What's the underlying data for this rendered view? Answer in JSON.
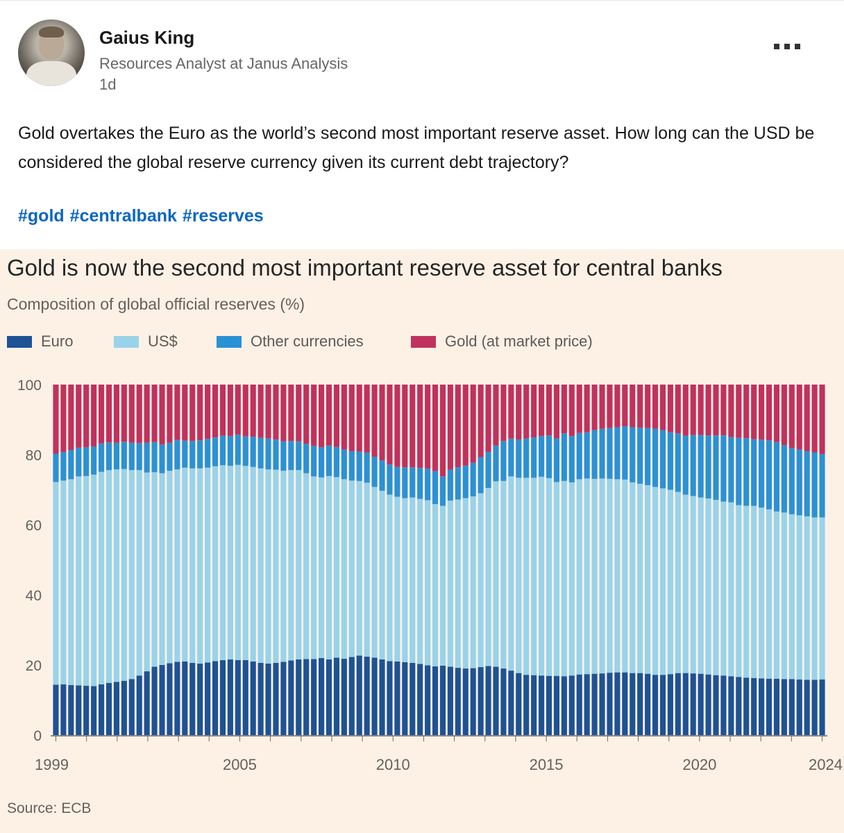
{
  "post": {
    "author_name": "Gaius King",
    "author_title": "Resources Analyst at Janus Analysis",
    "age": "1d",
    "text": "Gold overtakes the Euro as  the world’s second most important reserve asset.  How long can the USD be considered the global reserve currency given its current debt trajectory?",
    "hashtags": [
      "#gold",
      "#centralbank",
      "#reserves"
    ]
  },
  "chart_data": {
    "type": "bar",
    "stacked": true,
    "title": "Gold is now the second most important reserve asset for central banks",
    "subtitle": "Composition of global official reserves (%)",
    "source": "Source: ECB",
    "ylim": [
      0,
      100
    ],
    "yticks": [
      0,
      20,
      40,
      60,
      80,
      100
    ],
    "xtick_labels": [
      "1999",
      "2005",
      "2010",
      "2015",
      "2020",
      "2024"
    ],
    "x_range": [
      1999,
      2024
    ],
    "grid": false,
    "legend_position": "top",
    "series": [
      {
        "name": "Euro",
        "color": "#1e5294",
        "values": [
          14.4,
          14.5,
          14.3,
          14.2,
          14.1,
          14.0,
          14.5,
          14.9,
          15.2,
          15.5,
          16.0,
          17.0,
          18.2,
          19.5,
          20.0,
          20.5,
          20.9,
          21.0,
          20.6,
          20.4,
          20.7,
          21.1,
          21.4,
          21.6,
          21.4,
          21.4,
          21.0,
          20.6,
          20.4,
          20.6,
          20.9,
          21.3,
          21.6,
          21.7,
          21.7,
          22.0,
          21.6,
          22.1,
          21.8,
          22.3,
          22.7,
          22.4,
          22.1,
          21.6,
          21.1,
          21.0,
          20.8,
          20.6,
          20.3,
          19.9,
          19.6,
          19.8,
          19.5,
          19.2,
          19.0,
          19.1,
          19.4,
          19.7,
          19.5,
          19.0,
          18.4,
          17.7,
          17.2,
          17.1,
          17.0,
          16.9,
          16.9,
          16.8,
          17.0,
          17.3,
          17.4,
          17.5,
          17.6,
          17.8,
          17.9,
          17.9,
          17.7,
          17.7,
          17.5,
          17.2,
          17.2,
          17.4,
          17.7,
          17.7,
          17.6,
          17.5,
          17.3,
          17.1,
          17.0,
          16.8,
          16.6,
          16.4,
          16.3,
          16.2,
          16.1,
          16.1,
          16.0,
          16.0,
          15.9,
          15.8,
          15.8,
          15.9
        ]
      },
      {
        "name": "US$",
        "color": "#99d3ea",
        "values": [
          57.8,
          58.1,
          58.7,
          59.6,
          59.8,
          60.3,
          60.6,
          60.7,
          60.6,
          60.4,
          59.6,
          58.6,
          56.7,
          55.5,
          54.7,
          54.9,
          54.9,
          55.3,
          55.5,
          55.7,
          55.6,
          55.6,
          55.6,
          55.2,
          55.7,
          55.4,
          55.5,
          55.5,
          55.4,
          55.1,
          54.5,
          54.3,
          54.0,
          53.0,
          52.1,
          51.5,
          52.3,
          51.5,
          51.2,
          50.3,
          49.8,
          49.6,
          48.7,
          48.1,
          47.5,
          47.0,
          46.8,
          47.2,
          47.1,
          47.1,
          46.3,
          45.6,
          47.4,
          48.0,
          48.6,
          49.0,
          49.6,
          50.8,
          52.9,
          53.5,
          55.4,
          55.7,
          56.2,
          56.3,
          56.7,
          56.4,
          55.3,
          55.7,
          55.1,
          55.7,
          55.8,
          55.6,
          55.6,
          55.3,
          55.1,
          55.0,
          54.4,
          54.0,
          53.8,
          53.6,
          53.2,
          52.6,
          51.7,
          50.9,
          50.6,
          50.3,
          50.2,
          50.0,
          49.6,
          49.6,
          49.0,
          49.0,
          49.1,
          48.7,
          48.3,
          47.7,
          47.5,
          47.0,
          46.8,
          46.6,
          46.3,
          46.2
        ]
      },
      {
        "name": "Other currencies",
        "color": "#2b91d5",
        "values": [
          8.1,
          8.2,
          8.3,
          8.2,
          8.2,
          8.0,
          8.1,
          7.9,
          7.6,
          7.8,
          7.8,
          7.7,
          8.5,
          8.6,
          8.2,
          8.0,
          8.4,
          7.7,
          7.8,
          8.0,
          8.2,
          8.2,
          8.4,
          8.5,
          8.6,
          8.4,
          8.6,
          8.7,
          8.8,
          8.6,
          8.4,
          8.3,
          8.2,
          8.4,
          8.7,
          8.6,
          8.7,
          8.6,
          8.5,
          8.4,
          8.4,
          8.6,
          8.6,
          8.7,
          8.6,
          8.5,
          8.8,
          8.6,
          8.8,
          9.0,
          9.4,
          8.4,
          8.8,
          9.2,
          9.3,
          9.6,
          10.3,
          10.3,
          10.2,
          11.4,
          10.8,
          10.9,
          11.2,
          11.5,
          11.6,
          12.2,
          12.4,
          13.6,
          13.2,
          13.2,
          13.2,
          13.9,
          14.2,
          14.5,
          14.8,
          15.2,
          15.7,
          16.0,
          16.3,
          16.6,
          16.6,
          16.4,
          16.7,
          16.8,
          17.4,
          17.8,
          18.0,
          18.4,
          18.9,
          18.6,
          19.2,
          19.3,
          19.0,
          19.4,
          19.7,
          19.8,
          19.2,
          18.9,
          18.8,
          18.6,
          18.5,
          18.1
        ]
      },
      {
        "name": "Gold (at market price)",
        "color": "#c0325d",
        "values": [
          19.7,
          19.2,
          18.7,
          18.0,
          17.9,
          17.7,
          16.8,
          16.5,
          16.6,
          16.3,
          16.6,
          16.7,
          16.6,
          16.4,
          17.1,
          16.6,
          15.8,
          16.0,
          16.1,
          15.9,
          15.5,
          15.1,
          14.6,
          14.7,
          14.3,
          14.8,
          14.9,
          15.2,
          15.4,
          15.7,
          16.2,
          16.1,
          16.2,
          16.9,
          17.5,
          17.9,
          17.4,
          17.8,
          18.5,
          19.0,
          19.1,
          19.4,
          20.6,
          21.6,
          22.8,
          23.5,
          23.6,
          23.6,
          23.8,
          24.0,
          24.7,
          26.2,
          24.3,
          23.6,
          23.1,
          22.3,
          20.7,
          19.2,
          17.4,
          16.1,
          15.4,
          15.7,
          15.4,
          15.1,
          14.7,
          14.5,
          15.4,
          13.9,
          14.7,
          13.8,
          13.6,
          13.0,
          12.6,
          12.4,
          12.2,
          11.9,
          12.2,
          12.3,
          12.4,
          12.6,
          13.0,
          13.6,
          13.9,
          14.6,
          14.4,
          14.4,
          14.5,
          14.5,
          14.5,
          15.0,
          15.2,
          15.3,
          15.6,
          15.7,
          15.9,
          16.4,
          17.3,
          18.1,
          18.5,
          19.0,
          19.4,
          19.8
        ]
      }
    ]
  }
}
